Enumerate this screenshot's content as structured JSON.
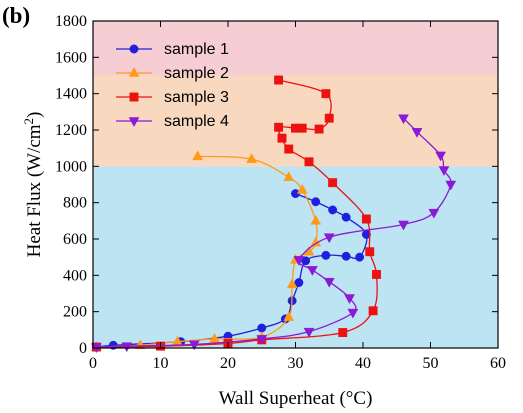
{
  "panel_label": "(b)",
  "chart_data": {
    "type": "scatter",
    "title": "",
    "xlabel": "Wall Superheat (°C)",
    "ylabel_main": "Heat Flux (W/cm",
    "ylabel_sup": "2",
    "ylabel_close": ")",
    "xlim": [
      0,
      60
    ],
    "ylim": [
      0,
      1800
    ],
    "xticks": [
      "0",
      "10",
      "20",
      "30",
      "40",
      "50",
      "60"
    ],
    "yticks": [
      "0",
      "200",
      "400",
      "600",
      "800",
      "1000",
      "1200",
      "1400",
      "1600",
      "1800"
    ],
    "grid": false,
    "legend_position": "top-left",
    "background_bands": [
      {
        "y0": 0,
        "y1": 1000,
        "color": "#bde4f2"
      },
      {
        "y0": 1000,
        "y1": 1500,
        "color": "#f8d9c0"
      },
      {
        "y0": 1500,
        "y1": 1800,
        "color": "#f7cdd4"
      }
    ],
    "series": [
      {
        "name": "sample 1",
        "color": "#1f1fdc",
        "marker": "circle",
        "x": [
          0.5,
          3,
          13,
          20,
          25,
          28.5,
          29.5,
          30.5,
          31.5,
          34.5,
          37.5,
          39.5,
          40.5,
          37.5,
          35.5,
          33,
          30
        ],
        "y": [
          5,
          15,
          35,
          65,
          110,
          160,
          260,
          360,
          480,
          510,
          505,
          500,
          625,
          720,
          760,
          805,
          850
        ]
      },
      {
        "name": "sample 2",
        "color": "#ff9a1a",
        "marker": "triangle-up",
        "x": [
          0.5,
          7,
          12.5,
          18,
          25,
          29,
          29.5,
          30,
          32,
          33,
          33,
          31,
          29,
          23.5,
          15.5
        ],
        "y": [
          5,
          15,
          35,
          50,
          60,
          170,
          350,
          485,
          530,
          580,
          700,
          870,
          940,
          1040,
          1055
        ]
      },
      {
        "name": "sample 3",
        "color": "#ee1111",
        "marker": "square",
        "x": [
          0.5,
          10,
          20,
          25,
          37,
          41.5,
          42,
          41,
          40.5,
          35.5,
          32,
          29,
          28,
          27.5,
          30,
          31,
          33.5,
          35,
          34.5,
          27.5
        ],
        "y": [
          5,
          10,
          25,
          45,
          85,
          205,
          405,
          530,
          710,
          910,
          1025,
          1095,
          1155,
          1215,
          1210,
          1210,
          1205,
          1265,
          1400,
          1475
        ]
      },
      {
        "name": "sample 4",
        "color": "#8a1ad6",
        "marker": "triangle-down",
        "x": [
          0.5,
          5,
          15,
          25,
          32,
          38.5,
          38,
          35,
          32.5,
          30.5,
          35,
          46,
          50.5,
          53,
          52,
          51.5,
          48,
          46
        ],
        "y": [
          5,
          10,
          20,
          50,
          90,
          195,
          275,
          365,
          430,
          485,
          610,
          680,
          745,
          900,
          980,
          1060,
          1190,
          1265
        ]
      }
    ]
  }
}
